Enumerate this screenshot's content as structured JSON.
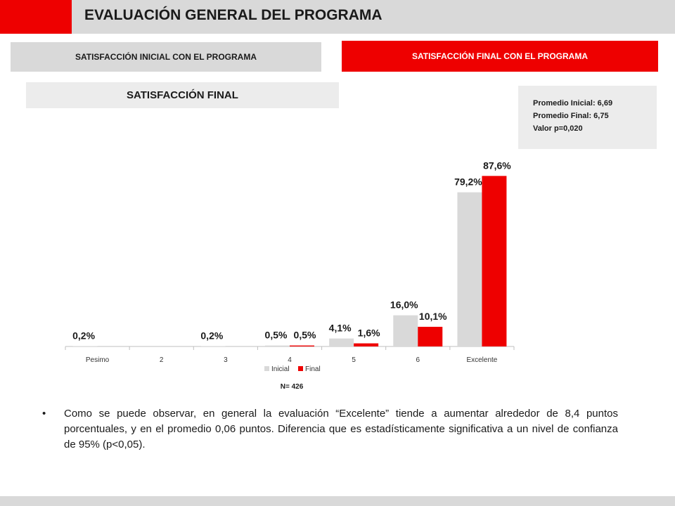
{
  "header": {
    "title": "EVALUACIÓN GENERAL DEL PROGRAMA"
  },
  "tabs": {
    "initial_label": "SATISFACCIÓN INICIAL CON EL PROGRAMA",
    "final_label": "SATISFACCIÓN FINAL CON EL PROGRAMA"
  },
  "section_title": "SATISFACCIÓN FINAL",
  "stats": {
    "line1": "Promedio Inicial: 6,69",
    "line2": "Promedio Final: 6,75",
    "line3": "Valor p=0,020"
  },
  "chart_data": {
    "type": "bar",
    "categories": [
      "Pesimo",
      "2",
      "3",
      "4",
      "5",
      "6",
      "Excelente"
    ],
    "series": [
      {
        "name": "Inicial",
        "color": "#d9d9d9",
        "values": [
          0.2,
          0,
          0.2,
          0.5,
          4.1,
          16.0,
          79.2
        ],
        "labels": [
          "0,2%",
          "",
          "0,2%",
          "0,5%",
          "4,1%",
          "16,0%",
          "79,2%"
        ]
      },
      {
        "name": "Final",
        "color": "#ee0000",
        "values": [
          0,
          0,
          0,
          0.5,
          1.6,
          10.1,
          87.6
        ],
        "labels": [
          "",
          "",
          "",
          "0,5%",
          "1,6%",
          "10,1%",
          "87,6%"
        ]
      }
    ],
    "ylim": [
      0,
      100
    ],
    "legend_position": "bottom",
    "note": "N= 426"
  },
  "body_text": "Como se puede observar, en general la evaluación “Excelente” tiende a aumentar alrededor de 8,4 puntos porcentuales, y en el promedio 0,06 puntos. Diferencia que es estadísticamente significativa a un nivel de confianza de 95% (p<0,05).",
  "colors": {
    "accent": "#ee0000",
    "gray": "#d9d9d9"
  }
}
